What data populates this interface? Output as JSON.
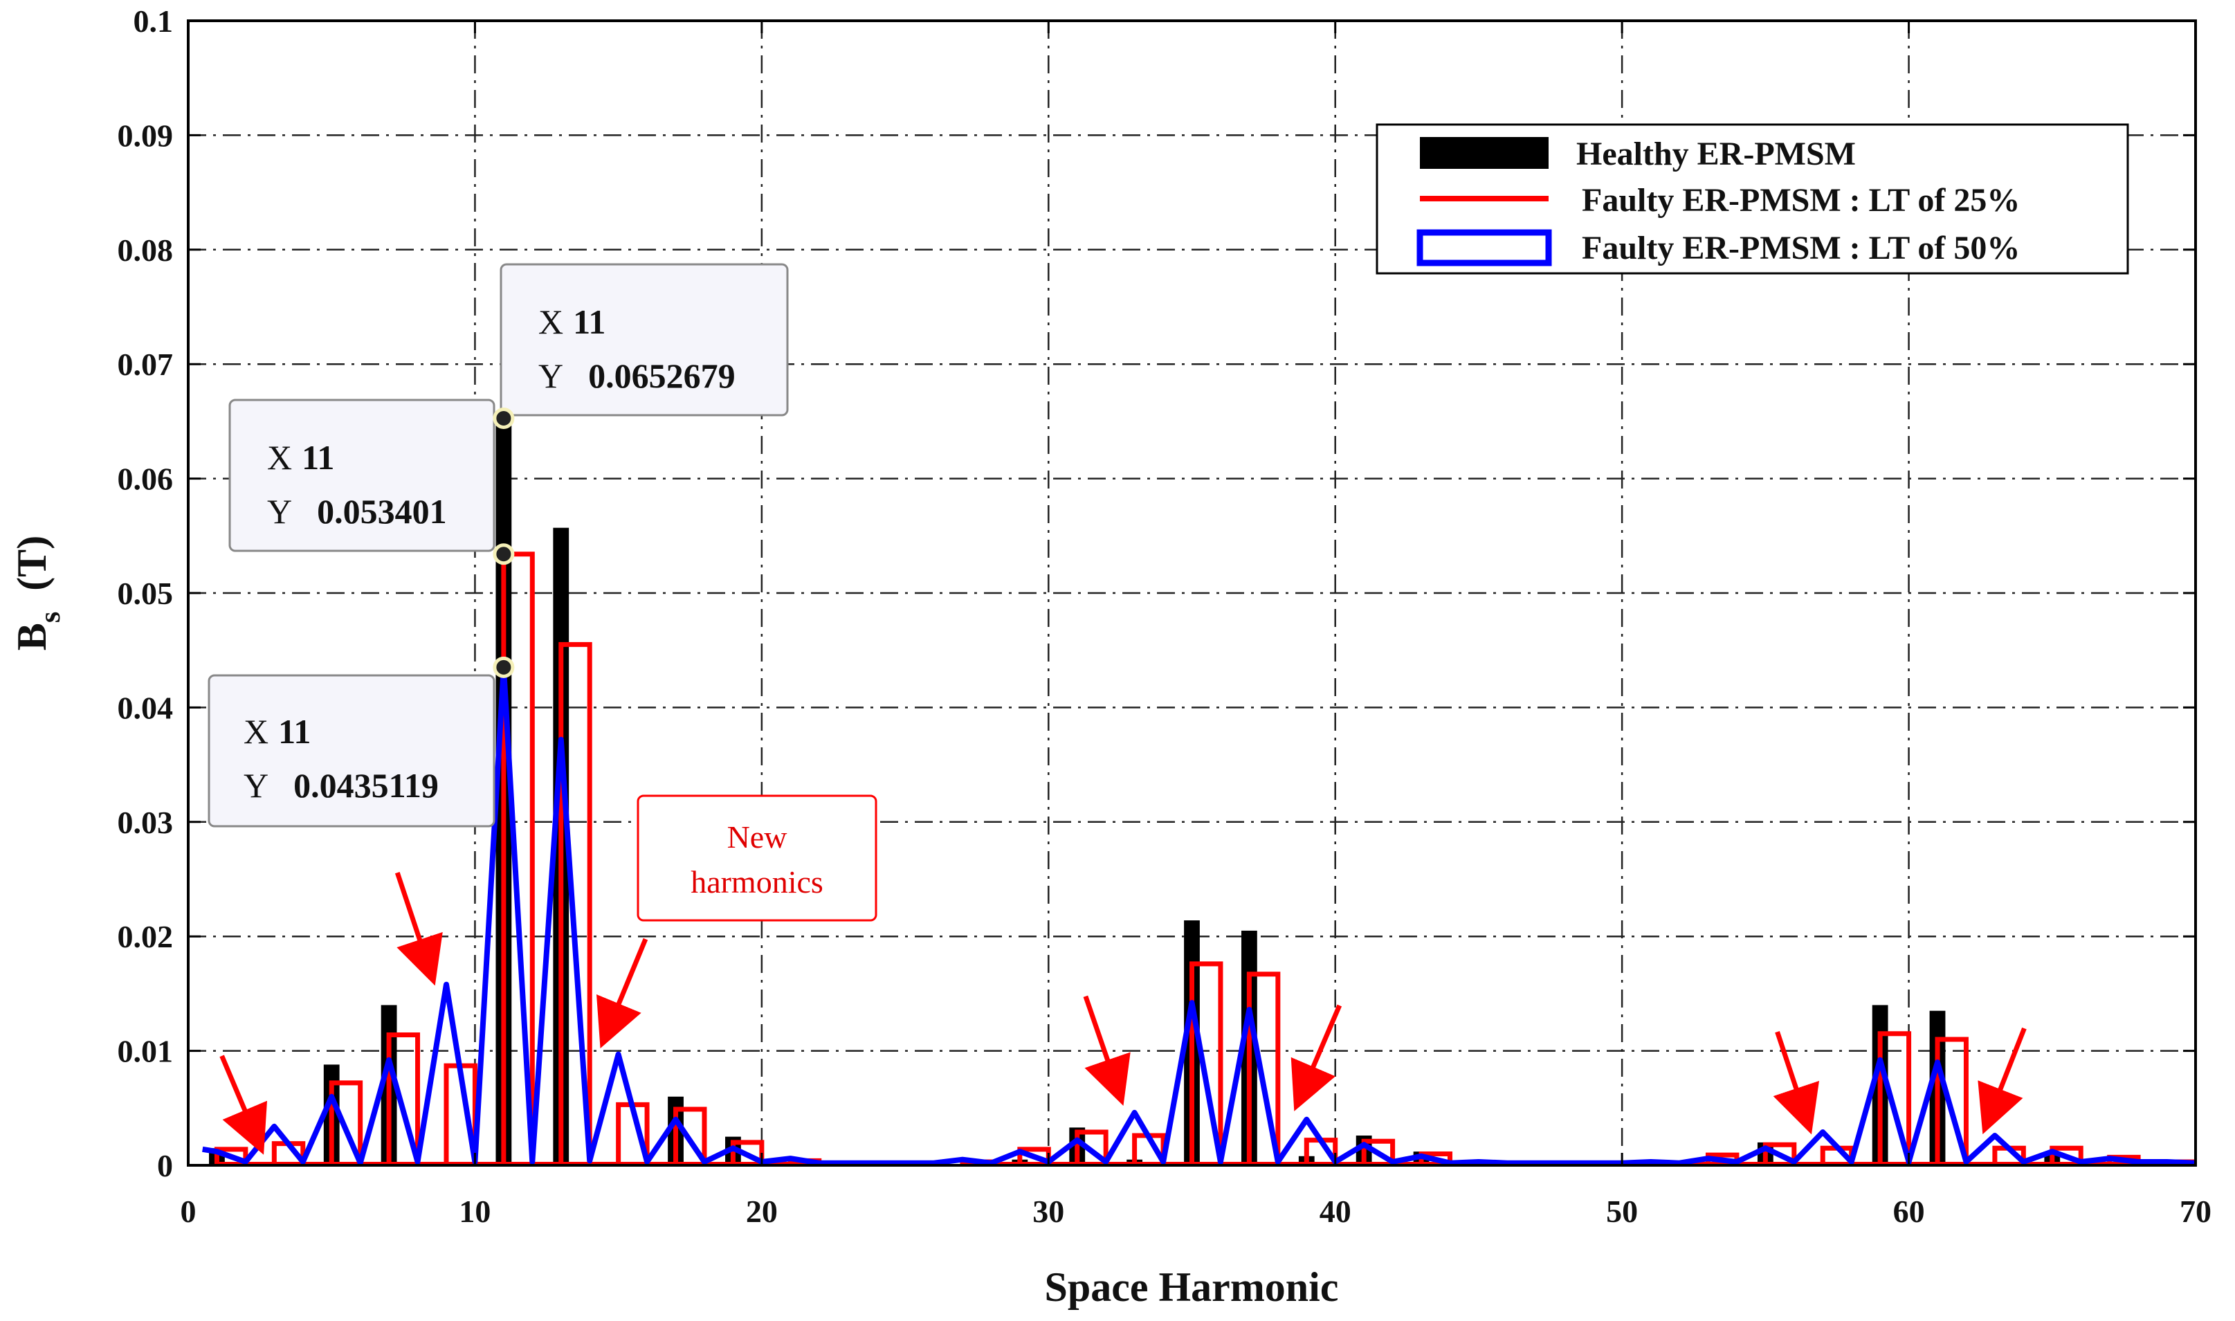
{
  "chart_data": {
    "type": "bar",
    "xlabel": "Space Harmonic",
    "ylabel_main": "B",
    "ylabel_sub": "s",
    "ylabel_unit": "(T)",
    "xlim": [
      0,
      70
    ],
    "ylim": [
      0,
      0.1
    ],
    "xticks": [
      "0",
      "10",
      "20",
      "30",
      "40",
      "50",
      "60",
      "70"
    ],
    "yticks": [
      "0",
      "0.01",
      "0.02",
      "0.03",
      "0.04",
      "0.05",
      "0.06",
      "0.07",
      "0.08",
      "0.09",
      "0.1"
    ],
    "grid": true,
    "legend_position": "top-right",
    "series": [
      {
        "name": "Healthy ER-PMSM",
        "style": "filled-bar",
        "color": "#000000",
        "x": [
          1,
          3,
          5,
          7,
          9,
          11,
          13,
          15,
          17,
          19,
          21,
          29,
          31,
          33,
          35,
          37,
          39,
          41,
          43,
          45,
          53,
          55,
          57,
          59,
          61,
          63,
          65,
          67,
          69
        ],
        "values": [
          0.0015,
          0.0003,
          0.0088,
          0.014,
          0.0003,
          0.0652679,
          0.0557,
          0.0003,
          0.006,
          0.0025,
          0.0003,
          0.0005,
          0.0033,
          0.0005,
          0.0214,
          0.0205,
          0.0008,
          0.0026,
          0.0012,
          0.0003,
          0.0003,
          0.002,
          0.0003,
          0.014,
          0.0135,
          0.0003,
          0.0012,
          0.0003,
          0.0002
        ]
      },
      {
        "name": "Faulty ER-PMSM : LT of 25%",
        "style": "outline-bar",
        "color": "#ff0000",
        "x": [
          1,
          2,
          3,
          4,
          5,
          6,
          7,
          8,
          9,
          10,
          11,
          12,
          13,
          14,
          15,
          16,
          17,
          18,
          19,
          20,
          21,
          22,
          27,
          28,
          29,
          30,
          31,
          32,
          33,
          34,
          35,
          36,
          37,
          38,
          39,
          40,
          41,
          42,
          43,
          44,
          45,
          52,
          53,
          54,
          55,
          56,
          57,
          58,
          59,
          60,
          61,
          62,
          63,
          64,
          65,
          66,
          67,
          68,
          69
        ],
        "values": [
          0.0014,
          0,
          0.0019,
          0,
          0.0072,
          0,
          0.0114,
          0,
          0.0087,
          0,
          0.053401,
          0,
          0.0455,
          0,
          0.0053,
          0,
          0.0049,
          0,
          0.002,
          0,
          0.0004,
          0,
          0.0003,
          0,
          0.0014,
          0,
          0.0029,
          0,
          0.0026,
          0,
          0.0176,
          0,
          0.0167,
          0,
          0.0022,
          0,
          0.0021,
          0,
          0.001,
          0,
          0.0002,
          0,
          0.0009,
          0,
          0.0018,
          0,
          0.0015,
          0,
          0.0115,
          0,
          0.011,
          0,
          0.0015,
          0,
          0.0015,
          0,
          0.0007,
          0,
          0.0003
        ]
      },
      {
        "name": "Faulty ER-PMSM : LT of 50%",
        "style": "line",
        "color": "#0000ff",
        "x": [
          0.5,
          1,
          2,
          3,
          4,
          5,
          6,
          7,
          8,
          9,
          10,
          11,
          12,
          13,
          14,
          15,
          16,
          17,
          18,
          19,
          20,
          21,
          22,
          23,
          24,
          25,
          26,
          27,
          28,
          29,
          30,
          31,
          32,
          33,
          34,
          35,
          36,
          37,
          38,
          39,
          40,
          41,
          42,
          43,
          44,
          45,
          46,
          47,
          48,
          49,
          50,
          51,
          52,
          53,
          54,
          55,
          56,
          57,
          58,
          59,
          60,
          61,
          62,
          63,
          64,
          65,
          66,
          67,
          68,
          69,
          70
        ],
        "values": [
          0.0014,
          0.0012,
          0.0003,
          0.0034,
          0.0003,
          0.006,
          0.0002,
          0.0092,
          0.0003,
          0.0158,
          0.0003,
          0.0435119,
          0.0003,
          0.0372,
          0.0004,
          0.0097,
          0.0003,
          0.004,
          0.0003,
          0.0015,
          0.0003,
          0.0006,
          0.0002,
          0.0002,
          0.0002,
          0.0002,
          0.0002,
          0.0005,
          0.0002,
          0.0012,
          0.0003,
          0.0022,
          0.0003,
          0.0046,
          0.0003,
          0.0142,
          0.0003,
          0.0136,
          0.0003,
          0.004,
          0.0003,
          0.0018,
          0.0003,
          0.0008,
          0.0002,
          0.0003,
          0.0002,
          0.0002,
          0.0002,
          0.0002,
          0.0002,
          0.0003,
          0.0002,
          0.0006,
          0.0003,
          0.0015,
          0.0003,
          0.0029,
          0.0003,
          0.0092,
          0.0003,
          0.009,
          0.0003,
          0.0026,
          0.0003,
          0.0012,
          0.0003,
          0.0006,
          0.0003,
          0.0003,
          0.0002
        ]
      }
    ],
    "datatips": [
      {
        "x_label": "X",
        "x_value": "11",
        "y_label": "Y",
        "y_value": "0.0652679",
        "anchor_x": 11,
        "anchor_y": 0.0652679
      },
      {
        "x_label": "X",
        "x_value": "11",
        "y_label": "Y",
        "y_value": "0.053401",
        "anchor_x": 11,
        "anchor_y": 0.053401
      },
      {
        "x_label": "X",
        "x_value": "11",
        "y_label": "Y",
        "y_value": "0.0435119",
        "anchor_x": 11,
        "anchor_y": 0.0435119
      }
    ],
    "annotation": {
      "text_line1": "New",
      "text_line2": "harmonics",
      "color": "#ff0000",
      "arrow_targets": [
        {
          "x": 2.5,
          "y": 0.0017
        },
        {
          "x": 8.5,
          "y": 0.0165
        },
        {
          "x": 14.5,
          "y": 0.011
        },
        {
          "x": 32.5,
          "y": 0.006
        },
        {
          "x": 38.7,
          "y": 0.0055
        },
        {
          "x": 56.5,
          "y": 0.0035
        },
        {
          "x": 62.7,
          "y": 0.0035
        }
      ]
    }
  }
}
